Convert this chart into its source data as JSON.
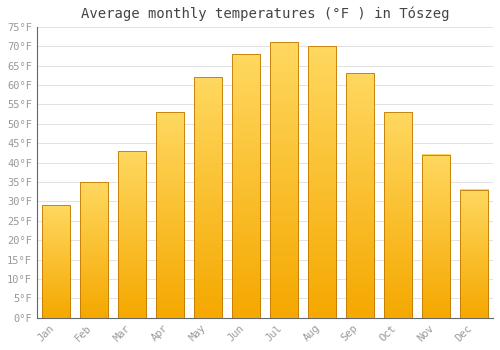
{
  "title": "Average monthly temperatures (°F ) in Tószeg",
  "months": [
    "Jan",
    "Feb",
    "Mar",
    "Apr",
    "May",
    "Jun",
    "Jul",
    "Aug",
    "Sep",
    "Oct",
    "Nov",
    "Dec"
  ],
  "values": [
    29,
    35,
    43,
    53,
    62,
    68,
    71,
    70,
    63,
    53,
    42,
    33
  ],
  "bar_color_bottom": "#F5A800",
  "bar_color_top": "#FFD860",
  "bar_edge_color": "#C07800",
  "background_color": "#ffffff",
  "grid_color": "#dddddd",
  "ylim": [
    0,
    75
  ],
  "yticks": [
    0,
    5,
    10,
    15,
    20,
    25,
    30,
    35,
    40,
    45,
    50,
    55,
    60,
    65,
    70,
    75
  ],
  "ytick_labels": [
    "0°F",
    "5°F",
    "10°F",
    "15°F",
    "20°F",
    "25°F",
    "30°F",
    "35°F",
    "40°F",
    "45°F",
    "50°F",
    "55°F",
    "60°F",
    "65°F",
    "70°F",
    "75°F"
  ],
  "title_fontsize": 10,
  "tick_fontsize": 7.5,
  "tick_color": "#999999",
  "figsize": [
    5.0,
    3.5
  ],
  "dpi": 100
}
